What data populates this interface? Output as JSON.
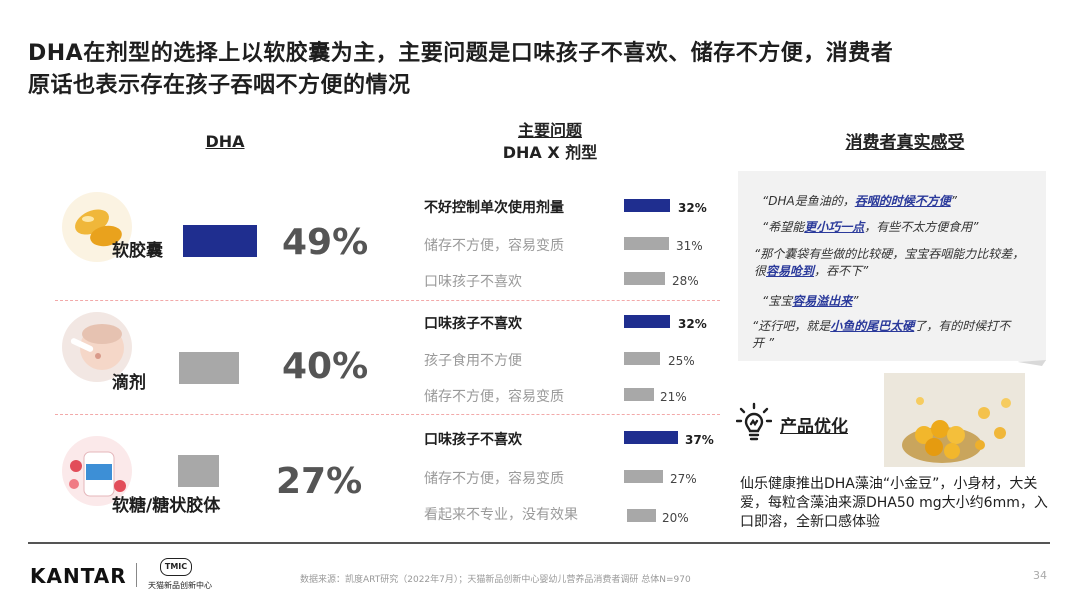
{
  "title_line1": "DHA在剂型的选择上以软胶囊为主，主要问题是口味孩子不喜欢、储存不方便，消费者",
  "title_line2": "原话也表示存在孩子吞咽不方便的情况",
  "col_dha": "DHA",
  "col_issue_line1": "主要问题",
  "col_issue_line2": "DHA  X  剂型",
  "col_consumer": "消费者真实感受",
  "colors": {
    "primary_bar": "#1f2e8f",
    "gray_bar": "#a8a8a8",
    "divider": "#f2a9a9"
  },
  "forms": [
    {
      "label": "软胶囊",
      "pct": "49%",
      "share": 49,
      "primary": true,
      "reasons": [
        {
          "text": "不好控制单次使用剂量",
          "pct": "32%",
          "value": 32,
          "top": true
        },
        {
          "text": "储存不方便，容易变质",
          "pct": "31%",
          "value": 31,
          "top": false
        },
        {
          "text": "口味孩子不喜欢",
          "pct": "28%",
          "value": 28,
          "top": false
        }
      ]
    },
    {
      "label": "滴剂",
      "pct": "40%",
      "share": 40,
      "primary": false,
      "reasons": [
        {
          "text": "口味孩子不喜欢",
          "pct": "32%",
          "value": 32,
          "top": true
        },
        {
          "text": "孩子食用不方便",
          "pct": "25%",
          "value": 25,
          "top": false
        },
        {
          "text": "储存不方便，容易变质",
          "pct": "21%",
          "value": 21,
          "top": false
        }
      ]
    },
    {
      "label": "软糖/糖状胶体",
      "pct": "27%",
      "share": 27,
      "primary": false,
      "reasons": [
        {
          "text": "口味孩子不喜欢",
          "pct": "37%",
          "value": 37,
          "top": true
        },
        {
          "text": "储存不方便，容易变质",
          "pct": "27%",
          "value": 27,
          "top": false
        },
        {
          "text": "看起来不专业，没有效果",
          "pct": "20%",
          "value": 20,
          "top": false
        }
      ]
    }
  ],
  "quotes": [
    {
      "pre": "“DHA是鱼油的，",
      "hl": "吞咽的时候不方便",
      "post": "”"
    },
    {
      "pre": "“希望能",
      "hl": "更小巧一点",
      "post": "，有些不太方便食用”"
    },
    {
      "pre": "“那个囊袋有些做的比较硬，宝宝吞咽能力比较差，很",
      "hl": "容易呛到",
      "post": "，吞不下”"
    },
    {
      "pre": "“宝宝",
      "hl": "容易溢出来",
      "post": "”"
    },
    {
      "pre": "“还行吧，就是",
      "hl": "小鱼的尾巴太硬",
      "post": "了，有的时候打不开 ”"
    }
  ],
  "product": {
    "heading": "产品优化",
    "desc": "仙乐健康推出DHA藻油“小金豆”，小身材，大关爱，每粒含藻油来源DHA50 mg大小约6mm，入口即溶，全新口感体验"
  },
  "footer": {
    "logo": "KANTAR",
    "tmic_badge": "TMIC",
    "tmic_name": "天猫新品创新中心",
    "source": "数据来源：凯度ART研究（2022年7月）；天猫新品创新中心婴幼儿营养品消费者调研 总体N=970",
    "page": "34"
  }
}
